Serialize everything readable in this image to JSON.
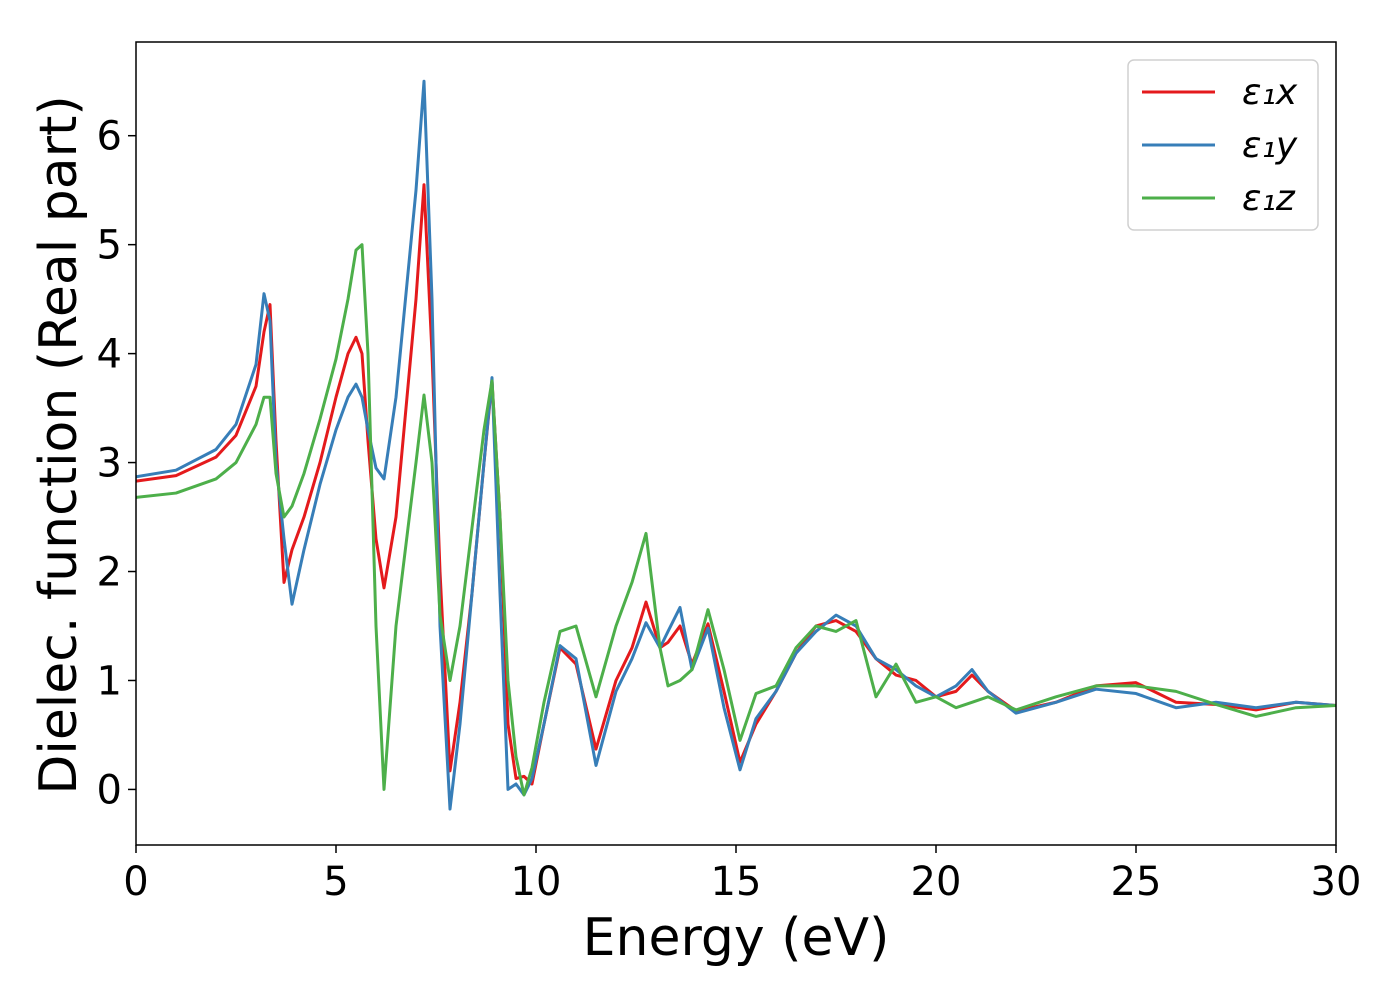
{
  "chart_data": {
    "type": "line",
    "xlabel": "Energy (eV)",
    "ylabel": "Dielec. function (Real part)",
    "x": [
      0,
      1,
      2,
      2.5,
      3,
      3.2,
      3.35,
      3.5,
      3.7,
      3.9,
      4.2,
      4.6,
      5,
      5.3,
      5.5,
      5.65,
      5.8,
      6,
      6.2,
      6.5,
      7,
      7.2,
      7.4,
      7.6,
      7.85,
      8.1,
      8.4,
      8.7,
      8.9,
      9.1,
      9.3,
      9.5,
      9.7,
      9.9,
      10.2,
      10.6,
      11,
      11.5,
      12,
      12.4,
      12.75,
      13.1,
      13.3,
      13.6,
      13.9,
      14.3,
      14.7,
      15.1,
      15.5,
      16,
      16.5,
      17,
      17.5,
      18,
      18.5,
      19,
      19.5,
      20,
      20.5,
      20.9,
      21.3,
      22,
      23,
      24,
      25,
      26,
      27,
      28,
      29,
      30
    ],
    "series": [
      {
        "name": "ε₁x",
        "color": "#e41a1c",
        "values": [
          2.83,
          2.88,
          3.05,
          3.25,
          3.7,
          4.2,
          4.45,
          3.2,
          1.9,
          2.2,
          2.5,
          3.0,
          3.6,
          4.0,
          4.15,
          4.0,
          3.2,
          2.3,
          1.85,
          2.5,
          4.5,
          5.55,
          4.0,
          2.0,
          0.17,
          0.8,
          1.8,
          3.0,
          3.75,
          2.5,
          0.6,
          0.1,
          0.12,
          0.05,
          0.6,
          1.3,
          1.15,
          0.37,
          1.0,
          1.3,
          1.72,
          1.3,
          1.35,
          1.5,
          1.15,
          1.52,
          0.9,
          0.25,
          0.6,
          0.9,
          1.25,
          1.5,
          1.55,
          1.45,
          1.2,
          1.05,
          1.0,
          0.85,
          0.9,
          1.05,
          0.9,
          0.72,
          0.8,
          0.95,
          0.98,
          0.8,
          0.78,
          0.73,
          0.8,
          0.77
        ]
      },
      {
        "name": "ε₁y",
        "color": "#377eb8",
        "values": [
          2.87,
          2.93,
          3.12,
          3.35,
          3.9,
          4.55,
          4.3,
          3.0,
          2.3,
          1.7,
          2.2,
          2.8,
          3.3,
          3.6,
          3.72,
          3.6,
          3.3,
          2.95,
          2.85,
          3.6,
          5.5,
          6.5,
          4.5,
          1.5,
          -0.18,
          0.6,
          1.8,
          3.0,
          3.78,
          1.8,
          0.0,
          0.05,
          -0.05,
          0.1,
          0.6,
          1.32,
          1.2,
          0.22,
          0.9,
          1.2,
          1.53,
          1.3,
          1.45,
          1.67,
          1.1,
          1.48,
          0.75,
          0.18,
          0.65,
          0.9,
          1.25,
          1.45,
          1.6,
          1.5,
          1.2,
          1.1,
          0.95,
          0.85,
          0.95,
          1.1,
          0.9,
          0.7,
          0.8,
          0.92,
          0.88,
          0.75,
          0.8,
          0.75,
          0.8,
          0.77
        ]
      },
      {
        "name": "ε₁z",
        "color": "#4daf4a",
        "values": [
          2.68,
          2.72,
          2.85,
          3.0,
          3.35,
          3.6,
          3.6,
          2.9,
          2.5,
          2.6,
          2.9,
          3.4,
          3.95,
          4.5,
          4.95,
          5.0,
          4.0,
          1.5,
          0.0,
          1.5,
          3.0,
          3.62,
          3.0,
          1.6,
          1.0,
          1.5,
          2.4,
          3.3,
          3.75,
          2.5,
          1.0,
          0.3,
          -0.05,
          0.2,
          0.8,
          1.45,
          1.5,
          0.85,
          1.5,
          1.9,
          2.35,
          1.3,
          0.95,
          1.0,
          1.1,
          1.65,
          1.1,
          0.45,
          0.88,
          0.95,
          1.3,
          1.5,
          1.45,
          1.55,
          0.85,
          1.15,
          0.8,
          0.85,
          0.75,
          0.8,
          0.85,
          0.73,
          0.85,
          0.95,
          0.95,
          0.9,
          0.78,
          0.67,
          0.75,
          0.77
        ]
      }
    ],
    "xlim": [
      0,
      30
    ],
    "xticks": [
      0,
      5,
      10,
      15,
      20,
      25,
      30
    ],
    "ylim": [
      -0.51,
      6.86
    ],
    "yticks": [
      0,
      1,
      2,
      3,
      4,
      5,
      6
    ],
    "grid": false,
    "legend_loc": "upper right"
  }
}
